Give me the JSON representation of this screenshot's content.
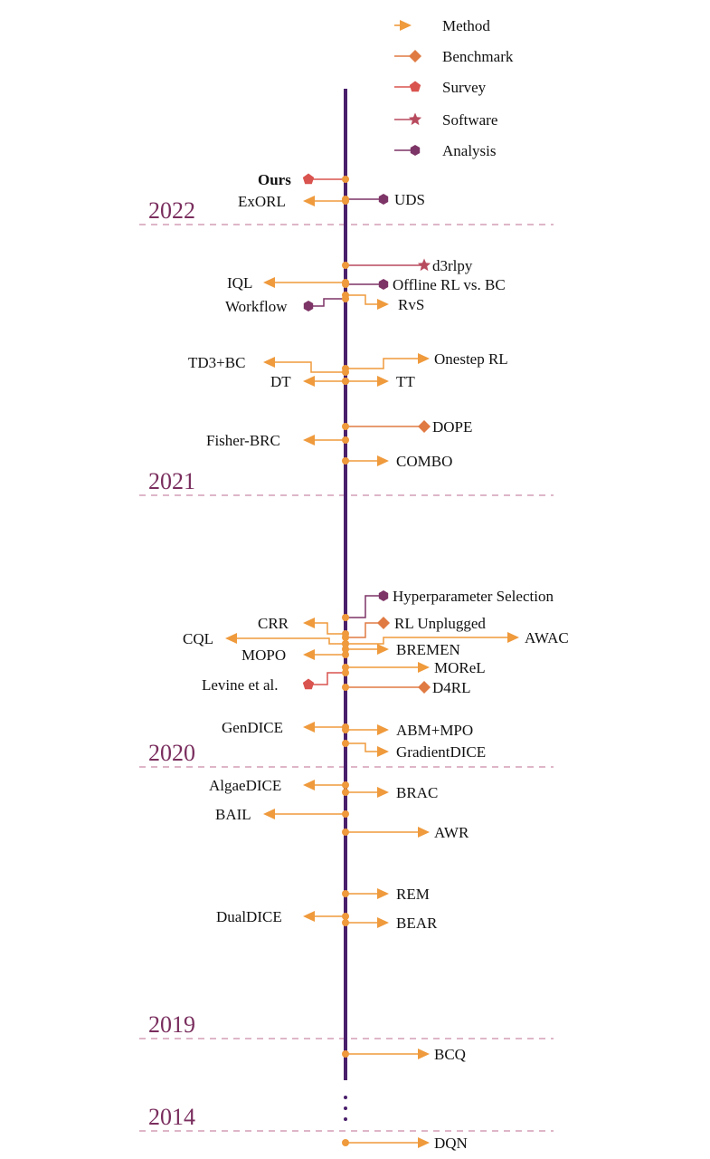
{
  "colors": {
    "method": "#ef9a3c",
    "benchmark": "#e07a43",
    "survey": "#d9534f",
    "software": "#b84a5e",
    "analysis": "#7d3466",
    "axis": "#4a1f6b",
    "year": "#7a2e5e",
    "divider": "#c98aa6"
  },
  "legend": [
    {
      "type": "method",
      "label": "Method",
      "icon": "arrow-icon"
    },
    {
      "type": "benchmark",
      "label": "Benchmark",
      "icon": "diamond-icon"
    },
    {
      "type": "survey",
      "label": "Survey",
      "icon": "pentagon-icon"
    },
    {
      "type": "software",
      "label": "Software",
      "icon": "star-icon"
    },
    {
      "type": "analysis",
      "label": "Analysis",
      "icon": "hexagon-icon"
    }
  ],
  "years": [
    "2022",
    "2021",
    "2020",
    "2019",
    "2014"
  ],
  "entries": [
    {
      "label": "Ours",
      "type": "survey",
      "side": "left",
      "bold": true
    },
    {
      "label": "ExORL",
      "type": "method",
      "side": "left"
    },
    {
      "label": "UDS",
      "type": "analysis",
      "side": "right"
    },
    {
      "label": "d3rlpy",
      "type": "software",
      "side": "right"
    },
    {
      "label": "IQL",
      "type": "method",
      "side": "left"
    },
    {
      "label": "Offline RL vs. BC",
      "type": "analysis",
      "side": "right"
    },
    {
      "label": "Workflow",
      "type": "analysis",
      "side": "left"
    },
    {
      "label": "RvS",
      "type": "method",
      "side": "right"
    },
    {
      "label": "TD3+BC",
      "type": "method",
      "side": "left"
    },
    {
      "label": "Onestep RL",
      "type": "method",
      "side": "right"
    },
    {
      "label": "DT",
      "type": "method",
      "side": "left"
    },
    {
      "label": "TT",
      "type": "method",
      "side": "right"
    },
    {
      "label": "DOPE",
      "type": "benchmark",
      "side": "right"
    },
    {
      "label": "Fisher-BRC",
      "type": "method",
      "side": "left"
    },
    {
      "label": "COMBO",
      "type": "method",
      "side": "right"
    },
    {
      "label": "Hyperparameter Selection",
      "type": "analysis",
      "side": "right"
    },
    {
      "label": "CRR",
      "type": "method",
      "side": "left"
    },
    {
      "label": "RL Unplugged",
      "type": "benchmark",
      "side": "right"
    },
    {
      "label": "AWAC",
      "type": "method",
      "side": "right"
    },
    {
      "label": "CQL",
      "type": "method",
      "side": "left"
    },
    {
      "label": "BREMEN",
      "type": "method",
      "side": "right"
    },
    {
      "label": "MOPO",
      "type": "method",
      "side": "left"
    },
    {
      "label": "MOReL",
      "type": "method",
      "side": "right"
    },
    {
      "label": "Levine et al.",
      "type": "survey",
      "side": "left"
    },
    {
      "label": "D4RL",
      "type": "benchmark",
      "side": "right"
    },
    {
      "label": "GenDICE",
      "type": "method",
      "side": "left"
    },
    {
      "label": "ABM+MPO",
      "type": "method",
      "side": "right"
    },
    {
      "label": "GradientDICE",
      "type": "method",
      "side": "right"
    },
    {
      "label": "AlgaeDICE",
      "type": "method",
      "side": "left"
    },
    {
      "label": "BRAC",
      "type": "method",
      "side": "right"
    },
    {
      "label": "BAIL",
      "type": "method",
      "side": "left"
    },
    {
      "label": "AWR",
      "type": "method",
      "side": "right"
    },
    {
      "label": "REM",
      "type": "method",
      "side": "right"
    },
    {
      "label": "DualDICE",
      "type": "method",
      "side": "left"
    },
    {
      "label": "BEAR",
      "type": "method",
      "side": "right"
    },
    {
      "label": "BCQ",
      "type": "method",
      "side": "right"
    },
    {
      "label": "DQN",
      "type": "method",
      "side": "right"
    }
  ]
}
